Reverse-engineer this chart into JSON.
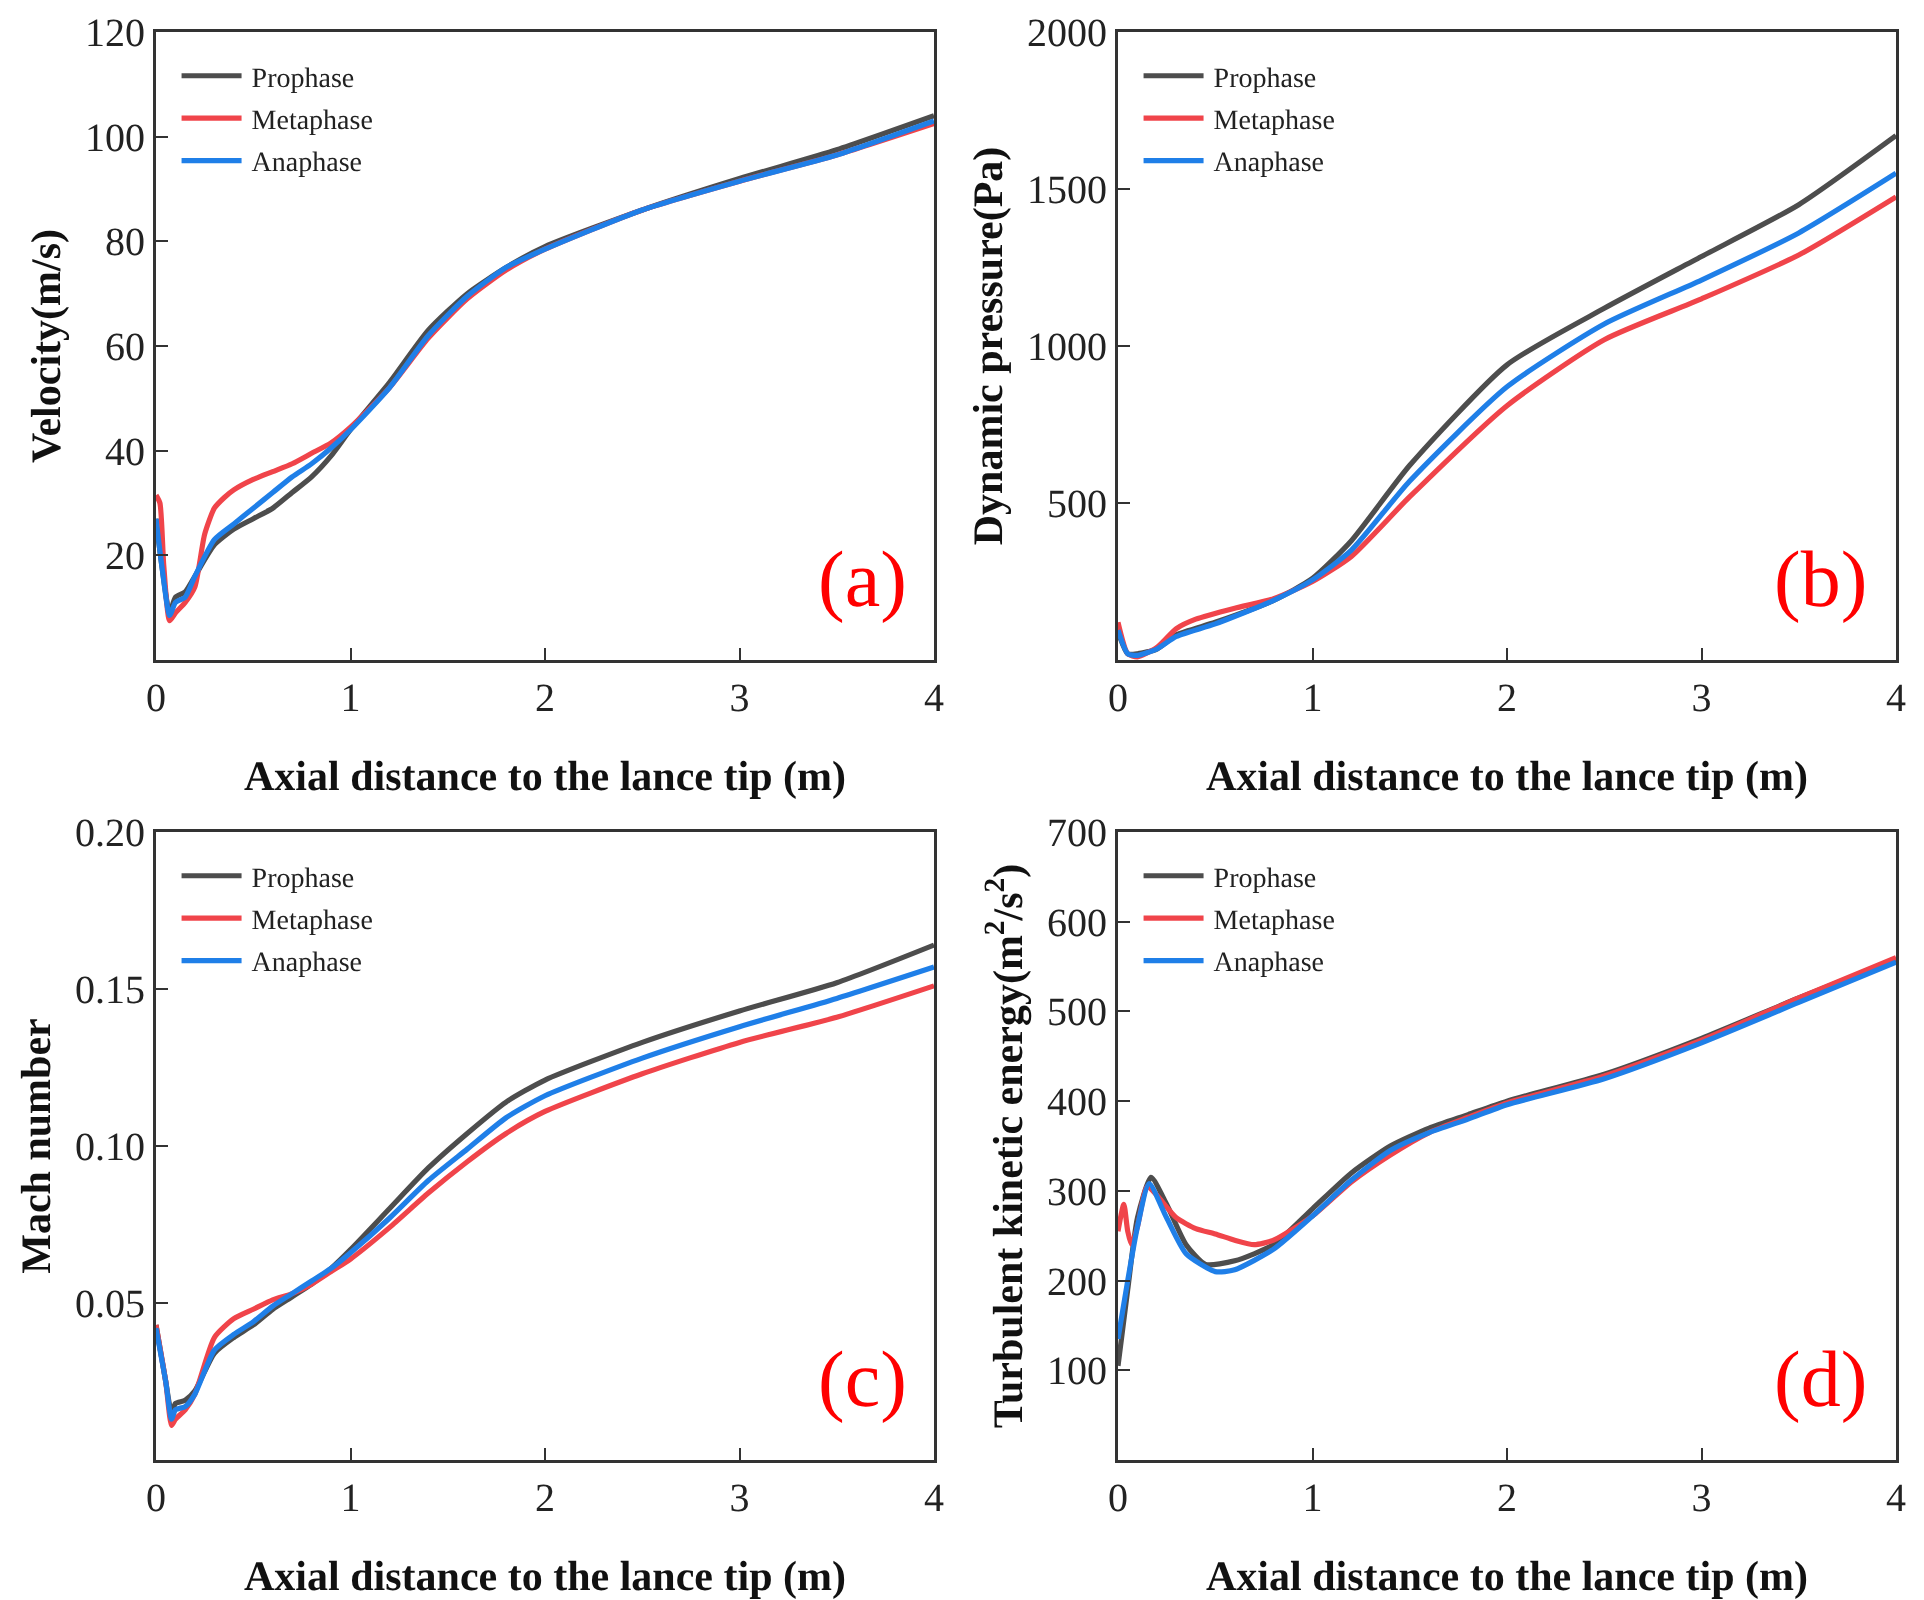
{
  "chart_data": [
    {
      "type": "line",
      "xlabel": "Axial distance to the lance tip (m)",
      "ylabel": "Velocity(m/s)",
      "annotations": [
        "(a)"
      ],
      "xlim": [
        0,
        4
      ],
      "xticks": [
        0,
        1,
        2,
        3,
        4
      ],
      "ylim": [
        0,
        120
      ],
      "yticks": [
        20,
        40,
        60,
        80,
        100,
        120
      ],
      "legend": "top left",
      "grid": false,
      "marker": "none",
      "line_style": "solid",
      "series": [
        {
          "name": "Prophase",
          "color": "#4d4d4d",
          "x": [
            0,
            0.03,
            0.07,
            0.1,
            0.15,
            0.2,
            0.3,
            0.4,
            0.5,
            0.6,
            0.7,
            0.8,
            0.9,
            1.0,
            1.2,
            1.4,
            1.6,
            1.8,
            2.0,
            2.5,
            3.0,
            3.5,
            4.0
          ],
          "values": [
            27,
            18,
            9,
            12,
            13,
            16,
            22,
            25,
            27,
            29,
            32,
            35,
            39,
            44,
            53,
            63,
            70,
            75,
            79,
            86,
            92,
            97.5,
            104
          ]
        },
        {
          "name": "Metaphase",
          "color": "#f0444a",
          "x": [
            0,
            0.02,
            0.04,
            0.07,
            0.1,
            0.15,
            0.2,
            0.25,
            0.3,
            0.35,
            0.4,
            0.5,
            0.6,
            0.7,
            0.8,
            0.9,
            1.0,
            1.2,
            1.4,
            1.6,
            1.8,
            2.0,
            2.5,
            3.0,
            3.5,
            4.0
          ],
          "values": [
            31.5,
            30,
            18,
            7.5,
            9,
            11,
            14,
            24,
            29,
            31,
            32.5,
            34.5,
            36,
            37.5,
            39.5,
            41.5,
            44.5,
            52,
            61.5,
            69,
            74.5,
            78.5,
            86,
            91.5,
            96.5,
            102.5
          ]
        },
        {
          "name": "Anaphase",
          "color": "#1f7fe8",
          "x": [
            0,
            0.03,
            0.07,
            0.1,
            0.15,
            0.2,
            0.3,
            0.4,
            0.5,
            0.6,
            0.7,
            0.8,
            0.9,
            1.0,
            1.2,
            1.4,
            1.6,
            1.8,
            2.0,
            2.5,
            3.0,
            3.5,
            4.0
          ],
          "values": [
            27,
            18,
            8.5,
            11,
            12,
            16,
            23,
            26,
            29,
            32,
            35,
            37.5,
            40.5,
            44,
            52,
            62,
            69.5,
            75,
            78.5,
            86,
            91.5,
            96.5,
            103
          ]
        }
      ]
    },
    {
      "type": "line",
      "xlabel": "Axial distance to the lance tip (m)",
      "ylabel": "Dynamic pressure(Pa)",
      "annotations": [
        "(b)"
      ],
      "xlim": [
        0,
        4
      ],
      "xticks": [
        0,
        1,
        2,
        3,
        4
      ],
      "ylim": [
        0,
        2000
      ],
      "yticks": [
        500,
        1000,
        1500,
        2000
      ],
      "legend": "top left",
      "grid": false,
      "marker": "none",
      "line_style": "solid",
      "series": [
        {
          "name": "Prophase",
          "color": "#4d4d4d",
          "x": [
            0,
            0.05,
            0.1,
            0.2,
            0.3,
            0.5,
            0.8,
            1.0,
            1.2,
            1.5,
            2.0,
            2.5,
            3.0,
            3.5,
            4.0
          ],
          "values": [
            90,
            20,
            20,
            35,
            80,
            120,
            190,
            260,
            380,
            620,
            940,
            1120,
            1285,
            1450,
            1670
          ]
        },
        {
          "name": "Metaphase",
          "color": "#f0444a",
          "x": [
            0,
            0.05,
            0.1,
            0.2,
            0.3,
            0.4,
            0.6,
            0.8,
            1.0,
            1.2,
            1.5,
            2.0,
            2.5,
            3.0,
            3.5,
            4.0
          ],
          "values": [
            120,
            20,
            10,
            40,
            100,
            130,
            165,
            195,
            250,
            330,
            520,
            810,
            1020,
            1150,
            1290,
            1475
          ]
        },
        {
          "name": "Anaphase",
          "color": "#1f7fe8",
          "x": [
            0,
            0.05,
            0.1,
            0.2,
            0.3,
            0.5,
            0.8,
            1.0,
            1.2,
            1.5,
            2.0,
            2.5,
            3.0,
            3.5,
            4.0
          ],
          "values": [
            95,
            20,
            15,
            35,
            75,
            115,
            190,
            255,
            350,
            570,
            870,
            1070,
            1210,
            1360,
            1550
          ]
        }
      ]
    },
    {
      "type": "line",
      "xlabel": "Axial distance to the lance tip (m)",
      "ylabel": "Mach number",
      "annotations": [
        "(c)"
      ],
      "xlim": [
        0,
        4
      ],
      "xticks": [
        0,
        1,
        2,
        3,
        4
      ],
      "ylim": [
        0,
        0.2
      ],
      "yticks": [
        {
          "value": 0.05,
          "label": "0.05"
        },
        {
          "value": 0.1,
          "label": "0.10"
        },
        {
          "value": 0.15,
          "label": "0.15"
        },
        {
          "value": 0.2,
          "label": "0.20"
        }
      ],
      "legend": "top left",
      "grid": false,
      "marker": "none",
      "line_style": "solid",
      "series": [
        {
          "name": "Prophase",
          "color": "#4d4d4d",
          "x": [
            0,
            0.05,
            0.08,
            0.1,
            0.15,
            0.2,
            0.3,
            0.4,
            0.5,
            0.6,
            0.7,
            0.8,
            0.9,
            1.0,
            1.2,
            1.4,
            1.6,
            1.8,
            2.0,
            2.5,
            3.0,
            3.5,
            4.0
          ],
          "values": [
            0.043,
            0.025,
            0.015,
            0.018,
            0.019,
            0.022,
            0.034,
            0.039,
            0.043,
            0.048,
            0.052,
            0.056,
            0.061,
            0.067,
            0.08,
            0.093,
            0.104,
            0.114,
            0.121,
            0.133,
            0.143,
            0.152,
            0.164
          ]
        },
        {
          "name": "Metaphase",
          "color": "#f0444a",
          "x": [
            0,
            0.05,
            0.08,
            0.1,
            0.15,
            0.2,
            0.3,
            0.4,
            0.5,
            0.6,
            0.7,
            0.8,
            0.9,
            1.0,
            1.2,
            1.4,
            1.6,
            1.8,
            2.0,
            2.5,
            3.0,
            3.5,
            4.0
          ],
          "values": [
            0.043,
            0.025,
            0.011,
            0.013,
            0.016,
            0.021,
            0.039,
            0.045,
            0.048,
            0.051,
            0.053,
            0.056,
            0.06,
            0.064,
            0.074,
            0.085,
            0.095,
            0.104,
            0.111,
            0.123,
            0.133,
            0.141,
            0.151
          ]
        },
        {
          "name": "Anaphase",
          "color": "#1f7fe8",
          "x": [
            0,
            0.05,
            0.08,
            0.1,
            0.15,
            0.2,
            0.3,
            0.4,
            0.5,
            0.6,
            0.7,
            0.8,
            0.9,
            1.0,
            1.2,
            1.4,
            1.6,
            1.8,
            2.0,
            2.5,
            3.0,
            3.5,
            4.0
          ],
          "values": [
            0.042,
            0.025,
            0.013,
            0.016,
            0.017,
            0.021,
            0.035,
            0.04,
            0.044,
            0.049,
            0.053,
            0.057,
            0.061,
            0.066,
            0.077,
            0.089,
            0.099,
            0.109,
            0.116,
            0.128,
            0.138,
            0.147,
            0.157
          ]
        }
      ]
    },
    {
      "type": "line",
      "xlabel": "Axial distance to the lance tip (m)",
      "ylabel": "Turbulent kinetic energy(m$^{2}$/s$^{2}$)",
      "annotations": [
        "(d)"
      ],
      "xlim": [
        0,
        4
      ],
      "xticks": [
        0,
        1,
        2,
        3,
        4
      ],
      "ylim": [
        0,
        700
      ],
      "yticks": [
        100,
        200,
        300,
        400,
        500,
        600,
        700
      ],
      "legend": "top left",
      "grid": false,
      "marker": "none",
      "line_style": "solid",
      "series": [
        {
          "name": "Prophase",
          "color": "#4d4d4d",
          "x": [
            0,
            0.05,
            0.1,
            0.17,
            0.25,
            0.35,
            0.45,
            0.6,
            0.8,
            1.0,
            1.2,
            1.4,
            1.6,
            1.8,
            2.0,
            2.5,
            3.0,
            3.5,
            4.0
          ],
          "values": [
            105,
            190,
            270,
            315,
            285,
            240,
            218,
            222,
            240,
            280,
            320,
            350,
            370,
            385,
            400,
            430,
            470,
            515,
            558
          ]
        },
        {
          "name": "Metaphase",
          "color": "#f0444a",
          "x": [
            0,
            0.03,
            0.05,
            0.07,
            0.1,
            0.15,
            0.2,
            0.3,
            0.4,
            0.5,
            0.6,
            0.7,
            0.8,
            1.0,
            1.2,
            1.4,
            1.6,
            1.8,
            2.0,
            2.5,
            3.0,
            3.5,
            4.0
          ],
          "values": [
            255,
            285,
            255,
            240,
            260,
            305,
            295,
            270,
            258,
            252,
            245,
            240,
            245,
            272,
            310,
            340,
            365,
            382,
            398,
            428,
            468,
            515,
            560
          ]
        },
        {
          "name": "Anaphase",
          "color": "#1f7fe8",
          "x": [
            0,
            0.05,
            0.1,
            0.16,
            0.25,
            0.35,
            0.5,
            0.6,
            0.8,
            1.0,
            1.2,
            1.4,
            1.6,
            1.8,
            2.0,
            2.5,
            3.0,
            3.5,
            4.0
          ],
          "values": [
            135,
            200,
            260,
            308,
            270,
            230,
            210,
            212,
            235,
            272,
            312,
            345,
            365,
            380,
            396,
            425,
            465,
            510,
            555
          ]
        }
      ]
    }
  ]
}
